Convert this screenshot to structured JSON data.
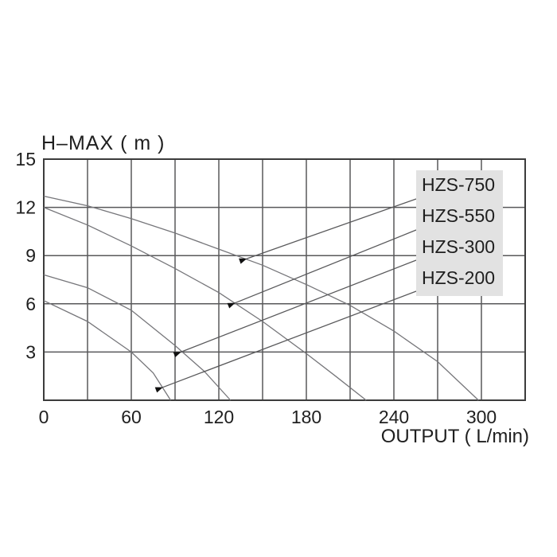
{
  "chart_data": {
    "type": "line",
    "title": "H–MAX ( m )",
    "xlabel": "OUTPUT ( L/min)",
    "ylabel": "H-MAX (m)",
    "xlim": [
      0,
      330
    ],
    "ylim": [
      0,
      15
    ],
    "x_ticks": [
      0,
      60,
      120,
      180,
      240,
      300
    ],
    "y_ticks": [
      15,
      12,
      9,
      6,
      3
    ],
    "x_grid_step": 30,
    "y_grid_step": 3,
    "grid": true,
    "legend_position": "top-right-overlay",
    "series": [
      {
        "name": "HZS-750",
        "points": [
          [
            0,
            12.7
          ],
          [
            30,
            12.1
          ],
          [
            60,
            11.3
          ],
          [
            90,
            10.4
          ],
          [
            120,
            9.4
          ],
          [
            150,
            8.4
          ],
          [
            180,
            7.2
          ],
          [
            210,
            5.9
          ],
          [
            240,
            4.3
          ],
          [
            270,
            2.4
          ],
          [
            298,
            0
          ]
        ]
      },
      {
        "name": "HZS-550",
        "points": [
          [
            0,
            12.0
          ],
          [
            30,
            10.9
          ],
          [
            60,
            9.6
          ],
          [
            90,
            8.2
          ],
          [
            120,
            6.7
          ],
          [
            150,
            4.9
          ],
          [
            180,
            2.9
          ],
          [
            200,
            1.5
          ],
          [
            221,
            0
          ]
        ]
      },
      {
        "name": "HZS-300",
        "points": [
          [
            0,
            7.8
          ],
          [
            30,
            7.0
          ],
          [
            60,
            5.6
          ],
          [
            90,
            3.4
          ],
          [
            110,
            1.8
          ],
          [
            128,
            0
          ]
        ]
      },
      {
        "name": "HZS-200",
        "points": [
          [
            0,
            6.2
          ],
          [
            30,
            4.9
          ],
          [
            60,
            3.0
          ],
          [
            75,
            1.7
          ],
          [
            87,
            0
          ]
        ]
      }
    ],
    "annotations": {
      "leaders": [
        {
          "series": "HZS-750",
          "tip_x": 139,
          "tip_y": 8.8
        },
        {
          "series": "HZS-550",
          "tip_x": 131,
          "tip_y": 6.05
        },
        {
          "series": "HZS-300",
          "tip_x": 94,
          "tip_y": 3.0
        },
        {
          "series": "HZS-200",
          "tip_x": 81.5,
          "tip_y": 0.8
        }
      ]
    }
  },
  "legend": {
    "items": [
      {
        "label": "HZS-750"
      },
      {
        "label": "HZS-550"
      },
      {
        "label": "HZS-300"
      },
      {
        "label": "HZS-200"
      }
    ]
  },
  "colors": {
    "background": "#ffffff",
    "text": "#1f1f1f",
    "grid": "#58585a",
    "frame": "#3c3c3c",
    "curve": "#76767a",
    "leader": "#59595b",
    "arrowhead": "#111111",
    "legend_bg": "#e2e2e2"
  }
}
